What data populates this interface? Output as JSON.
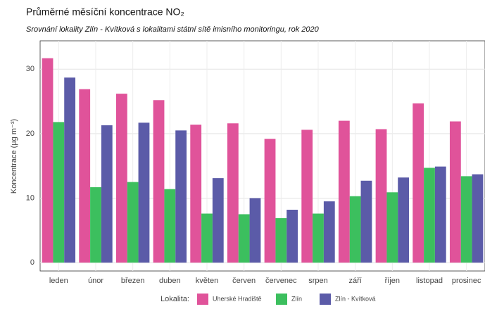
{
  "chart_data": {
    "type": "bar",
    "title": "Průměrné měsíční koncentrace NO₂",
    "subtitle": "Srovnání lokality Zlín - Kvítková s lokalitami státní sítě imisního monitoringu, rok 2020",
    "y_label": "Koncentrace (µg m⁻³)",
    "legend_title": "Lokalita:",
    "categories": [
      "leden",
      "únor",
      "březen",
      "duben",
      "květen",
      "červen",
      "červenec",
      "srpen",
      "září",
      "říjen",
      "listopad",
      "prosinec"
    ],
    "series": [
      {
        "name": "Uherské Hradiště",
        "color": "#e0539a",
        "values": [
          31.7,
          26.9,
          26.2,
          25.2,
          21.4,
          21.6,
          19.2,
          20.6,
          22.0,
          20.7,
          24.7,
          21.9
        ]
      },
      {
        "name": "Zlín",
        "color": "#3cbf5e",
        "values": [
          21.8,
          11.7,
          12.5,
          11.4,
          7.6,
          7.5,
          6.9,
          7.6,
          10.3,
          10.9,
          14.7,
          13.4
        ]
      },
      {
        "name": "Zlín - Kvítková",
        "color": "#5b5ba8",
        "values": [
          28.7,
          21.3,
          21.7,
          20.5,
          13.1,
          10.0,
          8.2,
          9.5,
          12.7,
          13.2,
          14.9,
          13.7
        ]
      }
    ],
    "ylim": [
      -1.3,
      34.4
    ],
    "yticks": [
      0,
      10,
      20,
      30
    ],
    "grid": true,
    "legend": "bottom"
  }
}
